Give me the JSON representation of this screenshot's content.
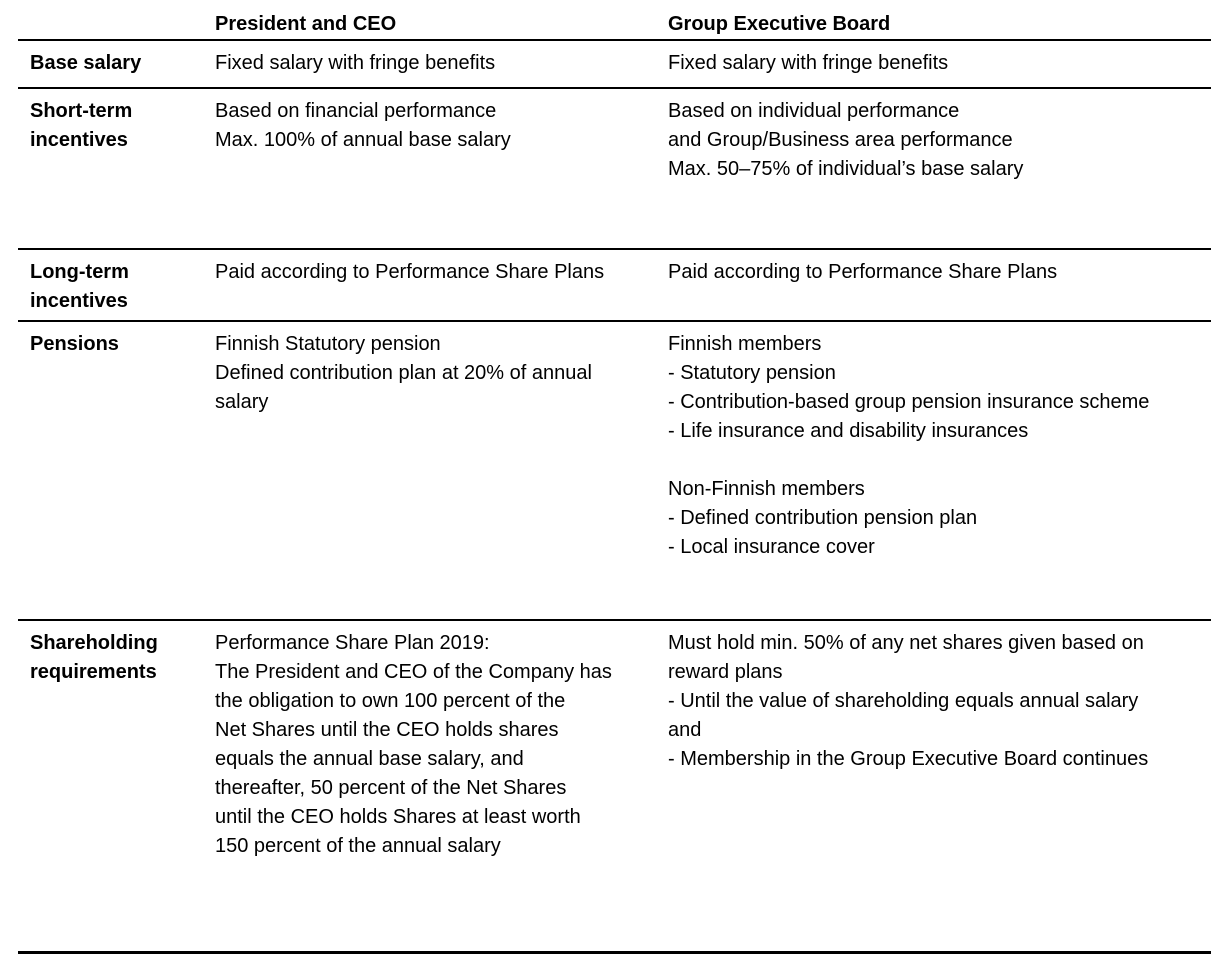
{
  "table": {
    "columns": [
      {
        "label": ""
      },
      {
        "label": "President and CEO"
      },
      {
        "label": "Group Executive Board"
      }
    ],
    "rows": [
      {
        "label": "Base salary",
        "president_ceo": "Fixed salary with fringe benefits",
        "group_executive_board": "Fixed salary with fringe benefits"
      },
      {
        "label": "Short-term\nincentives",
        "president_ceo": "Based on financial performance\nMax. 100% of annual base salary",
        "group_executive_board": "Based on individual performance\nand Group/Business area performance\nMax. 50–75% of individual’s base salary"
      },
      {
        "label": "Long-term\nincentives",
        "president_ceo": "Paid according to Performance Share Plans",
        "group_executive_board": "Paid according to Performance Share Plans"
      },
      {
        "label": "Pensions",
        "president_ceo": "Finnish Statutory pension\nDefined contribution plan at 20% of annual\nsalary",
        "group_executive_board": "Finnish members\n- Statutory pension\n- Contribution-based group pension insurance scheme\n- Life insurance and disability insurances\n\nNon-Finnish members\n- Defined contribution pension plan\n- Local insurance cover"
      },
      {
        "label": "Shareholding\nrequirements",
        "president_ceo": "Performance Share Plan 2019:\nThe President and CEO of the Company has\nthe obligation to own 100 percent of the\nNet Shares until the CEO holds shares\nequals the annual base salary, and\nthereafter, 50 percent of the Net Shares\nuntil the CEO holds Shares at least worth\n150 percent of the annual salary",
        "group_executive_board": "Must hold min. 50% of any net shares given based on\nreward plans\n- Until the value of shareholding equals annual salary\nand\n- Membership in the Group Executive Board continues"
      }
    ],
    "colors": {
      "text": "#000000",
      "rule": "#000000",
      "background": "#ffffff"
    }
  }
}
